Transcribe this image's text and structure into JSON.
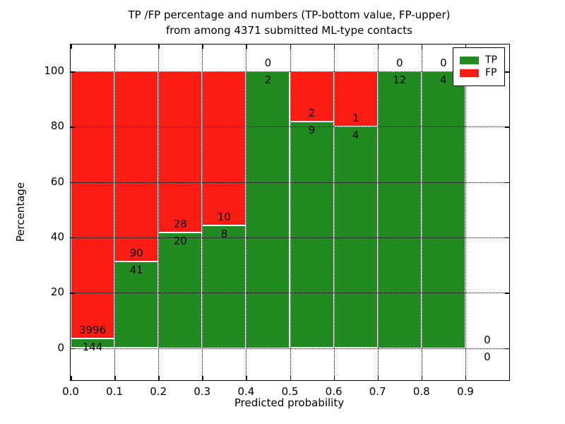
{
  "chart_data": {
    "type": "bar",
    "stacked": true,
    "normalized": "percent",
    "title": "TP /FP percentage and numbers (TP-bottom value, FP-upper)",
    "subtitle": "from among 4371 submitted ML-type contacts",
    "xlabel": "Predicted probability",
    "ylabel": "Percentage",
    "total_contacts": 4371,
    "bin_width": 0.1,
    "x_bin_edges": [
      0.0,
      0.1,
      0.2,
      0.3,
      0.4,
      0.5,
      0.6,
      0.7,
      0.8,
      0.9,
      1.0
    ],
    "series": [
      {
        "name": "TP",
        "color": "#218a21",
        "values": [
          144,
          41,
          20,
          8,
          2,
          9,
          4,
          12,
          4,
          0
        ]
      },
      {
        "name": "FP",
        "color": "#fb1d14",
        "values": [
          3996,
          90,
          28,
          10,
          0,
          2,
          1,
          0,
          0,
          0
        ]
      }
    ],
    "xtick_labels": [
      "0.0",
      "0.1",
      "0.2",
      "0.3",
      "0.4",
      "0.5",
      "0.6",
      "0.7",
      "0.8",
      "0.9"
    ],
    "ytick_values": [
      0,
      20,
      40,
      60,
      80,
      100
    ],
    "ytick_labels": [
      "0",
      "20",
      "40",
      "60",
      "80",
      "100"
    ],
    "xlim": [
      0.0,
      1.0
    ],
    "ylim_percent": [
      -12,
      110
    ],
    "grid": "dotted, drawn above bars",
    "legend": {
      "position": "upper right",
      "entries": [
        {
          "label": "TP",
          "color": "#218a21"
        },
        {
          "label": "FP",
          "color": "#fb1d14"
        }
      ]
    },
    "annotation_rule": "FP count above TP/FP boundary, TP count below boundary"
  }
}
